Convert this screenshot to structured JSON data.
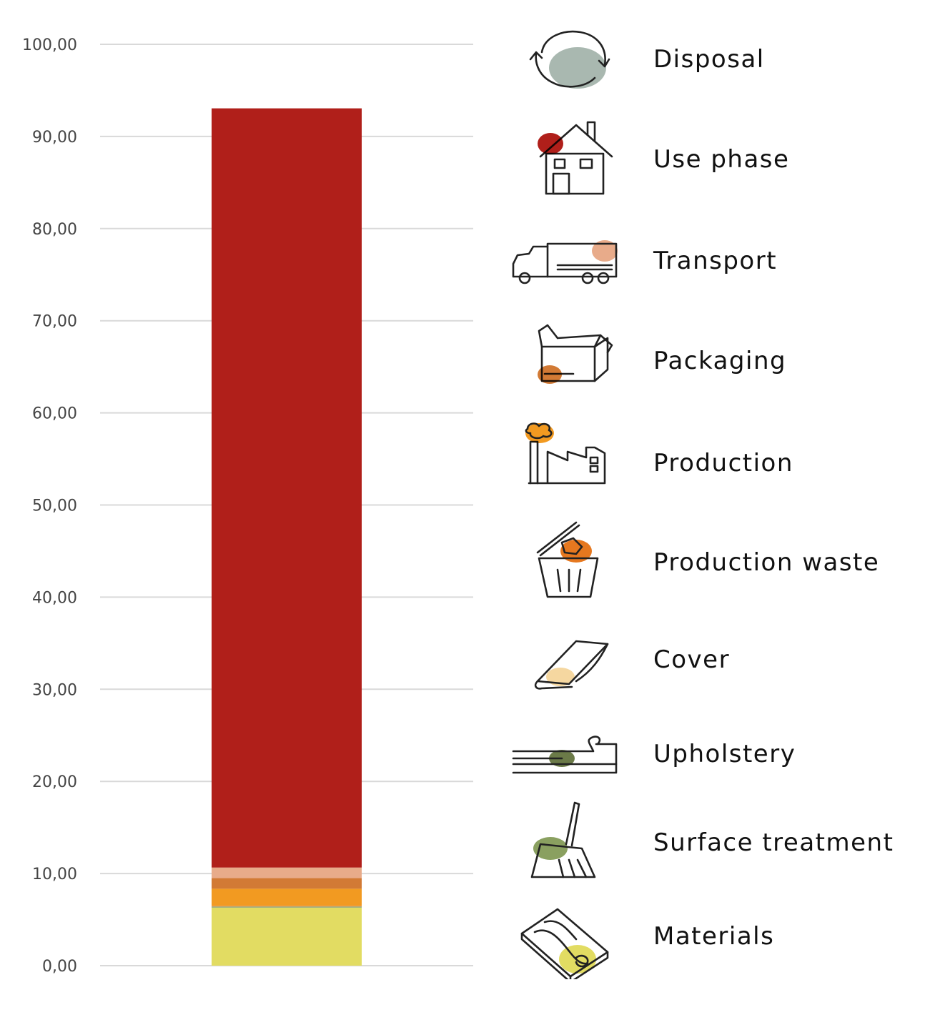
{
  "chart_data": {
    "type": "bar",
    "stacked": true,
    "categories": [
      ""
    ],
    "ylim": [
      0,
      100
    ],
    "ytick_step": 10,
    "yticks": [
      "0,00",
      "10,00",
      "20,00",
      "30,00",
      "40,00",
      "50,00",
      "60,00",
      "70,00",
      "80,00",
      "90,00",
      "100,00"
    ],
    "grid": true,
    "legend_position": "right",
    "series": [
      {
        "name": "Materials",
        "value": 6.3,
        "color": "#e2dc62",
        "icon": "wood-plank-icon"
      },
      {
        "name": "Surface treatment",
        "value": 0.05,
        "color": "#8aa060",
        "icon": "brush-icon"
      },
      {
        "name": "Upholstery",
        "value": 0.05,
        "color": "#6b7a48",
        "icon": "cushion-icon"
      },
      {
        "name": "Cover",
        "value": 0.05,
        "color": "#f5d7a0",
        "icon": "fabric-roll-icon"
      },
      {
        "name": "Production waste",
        "value": 0.05,
        "color": "#e6781f",
        "icon": "trash-bin-icon"
      },
      {
        "name": "Production",
        "value": 1.85,
        "color": "#f29a21",
        "icon": "factory-icon"
      },
      {
        "name": "Packaging",
        "value": 1.15,
        "color": "#d27a35",
        "icon": "box-icon"
      },
      {
        "name": "Transport",
        "value": 1.15,
        "color": "#e8ab8a",
        "icon": "truck-icon"
      },
      {
        "name": "Use phase",
        "value": 82.4,
        "color": "#b01f1a",
        "icon": "house-icon"
      },
      {
        "name": "Disposal",
        "value": 0.0,
        "color": "#a9b8b0",
        "icon": "recycle-icon"
      }
    ]
  }
}
